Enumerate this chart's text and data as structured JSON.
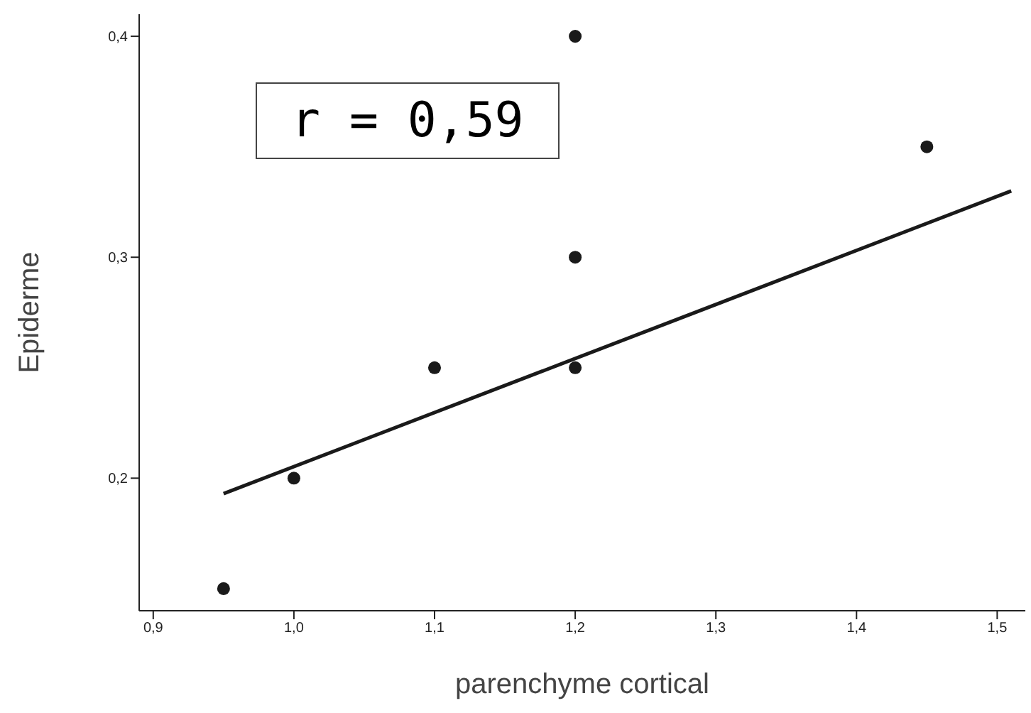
{
  "chart_data": {
    "type": "scatter",
    "xlabel": "parenchyme cortical",
    "ylabel": "Epiderme",
    "xlim": [
      0.89,
      1.52
    ],
    "ylim": [
      0.14,
      0.41
    ],
    "xticks": [
      {
        "value": 0.9,
        "label": "0,9"
      },
      {
        "value": 1.0,
        "label": "1,0"
      },
      {
        "value": 1.1,
        "label": "1,1"
      },
      {
        "value": 1.2,
        "label": "1,2"
      },
      {
        "value": 1.3,
        "label": "1,3"
      },
      {
        "value": 1.4,
        "label": "1,4"
      },
      {
        "value": 1.5,
        "label": "1,5"
      }
    ],
    "yticks": [
      {
        "value": 0.2,
        "label": "0,2"
      },
      {
        "value": 0.3,
        "label": "0,3"
      },
      {
        "value": 0.4,
        "label": "0,4"
      }
    ],
    "grid": false,
    "series": [
      {
        "color": "#1a1a1a",
        "marker": "circle",
        "x": [
          0.95,
          1.0,
          1.1,
          1.2,
          1.2,
          1.2,
          1.45
        ],
        "values": [
          0.15,
          0.2,
          0.25,
          0.4,
          0.3,
          0.25,
          0.35
        ]
      },
      {
        "type": "line",
        "color": "#1a1a1a",
        "marker": "none",
        "line_style": "solid",
        "x": [
          0.95,
          1.51
        ],
        "values": [
          0.193,
          0.33
        ]
      }
    ],
    "annotations": [
      "r = 0,59"
    ]
  }
}
